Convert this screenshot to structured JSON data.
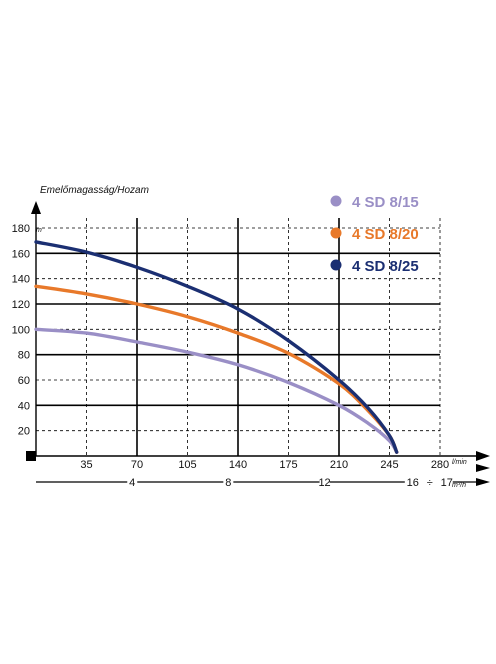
{
  "chart_data": {
    "type": "line",
    "title": "Emelőmagasság/Hozam",
    "y_unit": "m",
    "x_unit": "l/min",
    "x2_unit": "m³/h",
    "xlim": [
      0,
      280
    ],
    "ylim": [
      0,
      180
    ],
    "x_ticks": [
      35,
      70,
      105,
      140,
      175,
      210,
      245,
      280
    ],
    "y_ticks": [
      20,
      40,
      60,
      80,
      100,
      120,
      140,
      160,
      180
    ],
    "x2_ticks": [
      "4",
      "8",
      "12",
      "16",
      "17"
    ],
    "x2_tick_values_lpm": [
      66.7,
      133.3,
      200,
      266.7,
      283.3
    ],
    "x2_separator": "÷",
    "grid": true,
    "legend_position": "top-right",
    "series": [
      {
        "name": "4 SD 8/15",
        "color": "#9a8fc6",
        "x": [
          0,
          35,
          70,
          105,
          140,
          175,
          210,
          230,
          245,
          250
        ],
        "y": [
          100,
          97,
          90,
          82,
          72,
          58,
          40,
          26,
          12,
          3
        ]
      },
      {
        "name": "4 SD 8/20",
        "color": "#e8792a",
        "x": [
          0,
          35,
          70,
          105,
          140,
          175,
          210,
          230,
          245,
          250
        ],
        "y": [
          134,
          128,
          120,
          110,
          97,
          81,
          57,
          36,
          16,
          3
        ]
      },
      {
        "name": "4 SD 8/25",
        "color": "#1b2f72",
        "x": [
          0,
          35,
          70,
          105,
          140,
          175,
          210,
          230,
          245,
          250
        ],
        "y": [
          169,
          161,
          149,
          134,
          116,
          91,
          60,
          38,
          16,
          3
        ]
      }
    ]
  }
}
